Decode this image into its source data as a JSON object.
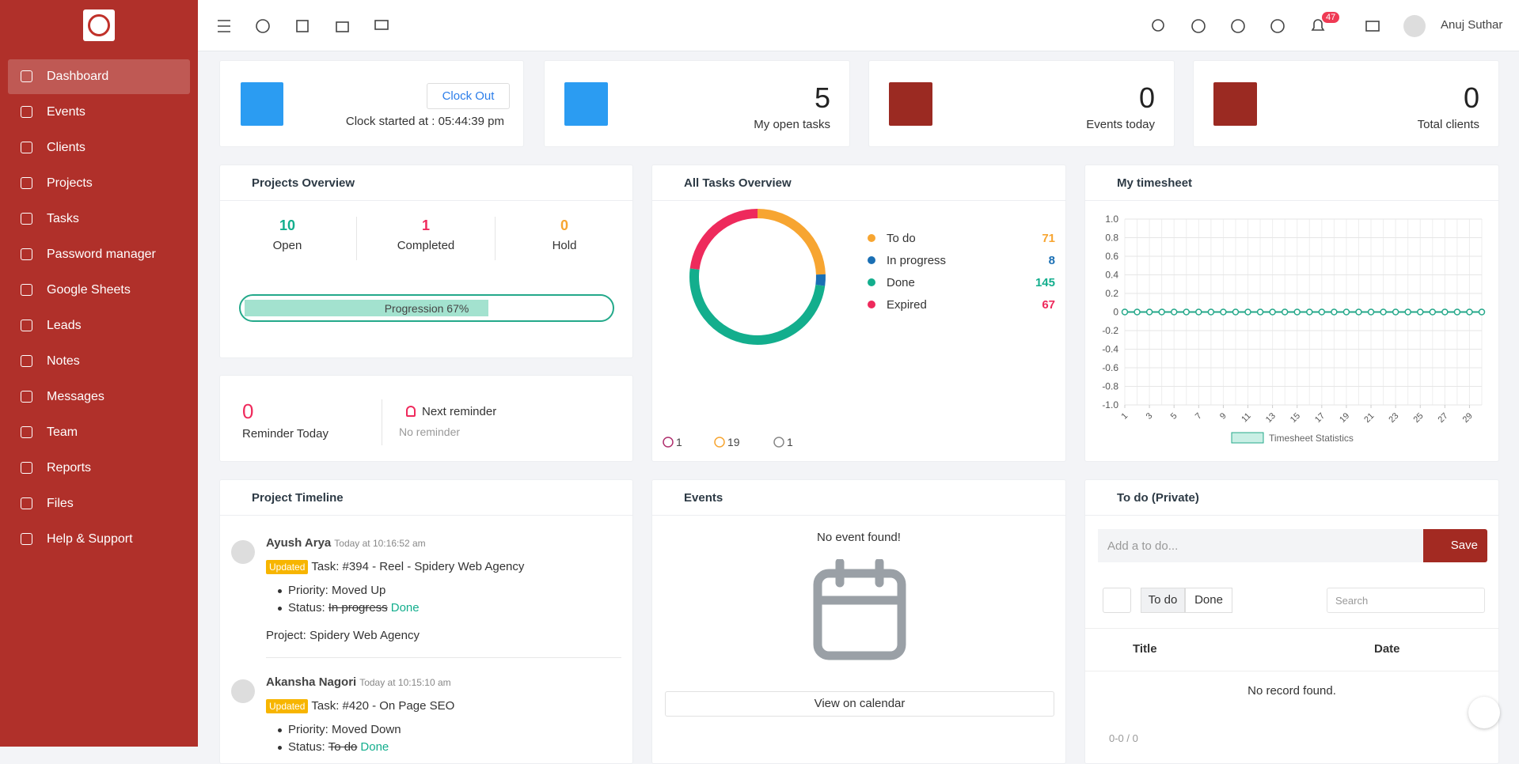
{
  "sidebar": {
    "menu": [
      "Dashboard",
      "Events",
      "Clients",
      "Projects",
      "Tasks",
      "Password manager",
      "Google Sheets",
      "Leads",
      "Notes",
      "Messages",
      "Team",
      "Reports",
      "Files",
      "Help & Support"
    ]
  },
  "topbar": {
    "notifications": 47,
    "user": "Anuj Suthar"
  },
  "clock": {
    "button": "Clock Out",
    "status": "Clock started at : 05:44:39 pm"
  },
  "stats": [
    {
      "value": 5,
      "label": "My open tasks"
    },
    {
      "value": 0,
      "label": "Events today"
    },
    {
      "value": 0,
      "label": "Total clients"
    }
  ],
  "projects_overview": {
    "title": "Projects Overview",
    "items": [
      {
        "value": 10,
        "label": "Open"
      },
      {
        "value": 1,
        "label": "Completed"
      },
      {
        "value": 0,
        "label": "Hold"
      }
    ],
    "progress": {
      "value": 67,
      "label": "Progression 67%"
    }
  },
  "reminder": {
    "value": 0,
    "label": "Reminder Today",
    "next": "Next reminder",
    "none": "No reminder"
  },
  "chart_data": [
    {
      "type": "pie",
      "title": "All Tasks Overview",
      "categories": [
        "To do",
        "In progress",
        "Done",
        "Expired"
      ],
      "values": [
        71,
        8,
        145,
        67
      ],
      "colors": [
        "#f7a531",
        "#1a6fb4",
        "#13ae8d",
        "#ee2a5c"
      ],
      "donut": true
    },
    {
      "type": "line",
      "title": "My timesheet",
      "x": [
        1,
        2,
        3,
        4,
        5,
        6,
        7,
        8,
        9,
        10,
        11,
        12,
        13,
        14,
        15,
        16,
        17,
        18,
        19,
        20,
        21,
        22,
        23,
        24,
        25,
        26,
        27,
        28,
        29,
        30
      ],
      "xlim": [
        1,
        30
      ],
      "xticks": [
        1,
        3,
        5,
        7,
        9,
        11,
        13,
        15,
        17,
        19,
        21,
        23,
        25,
        27,
        29
      ],
      "ylim": [
        -1,
        1
      ],
      "yticks": [
        {
          "value": 1,
          "label": "1.0"
        },
        0.8,
        0.6,
        0.4,
        0.2,
        0,
        -0.2,
        -0.4,
        -0.6,
        -0.8,
        {
          "value": -1,
          "label": "-1.0"
        }
      ],
      "grid": true,
      "series": [
        {
          "name": "Timesheet Statistics",
          "color": "#25a88a",
          "values": [
            0,
            0,
            0,
            0,
            0,
            0,
            0,
            0,
            0,
            0,
            0,
            0,
            0,
            0,
            0,
            0,
            0,
            0,
            0,
            0,
            0,
            0,
            0,
            0,
            0,
            0,
            0,
            0,
            0,
            0
          ]
        }
      ]
    }
  ],
  "tasks_footer": [
    1,
    19,
    1
  ],
  "timeline": {
    "title": "Project Timeline",
    "entries": [
      {
        "name": "Ayush Arya",
        "time": "Today at 10:16:52 am",
        "badge": "Updated",
        "task": "Task: #394 - Reel - Spidery Web Agency",
        "priority": "Priority: Moved Up",
        "status": {
          "label": "Status:",
          "from": "In progress",
          "to": "Done"
        },
        "project": "Project: Spidery Web Agency"
      },
      {
        "name": "Akansha Nagori",
        "time": "Today at 10:15:10 am",
        "badge": "Updated",
        "task": "Task: #420 - On Page SEO",
        "priority": "Priority: Moved Down",
        "status": {
          "label": "Status:",
          "from": "To do",
          "to": "Done"
        }
      }
    ]
  },
  "events": {
    "title": "Events",
    "empty": "No event found!",
    "link": "View on calendar"
  },
  "todo": {
    "title": "To do (Private)",
    "placeholder": "Add a to do...",
    "save": "Save",
    "tabs": [
      "To do",
      "Done"
    ],
    "search": "Search",
    "columns": [
      "Title",
      "Date"
    ],
    "empty": "No record found.",
    "pager": "0-0 / 0"
  }
}
